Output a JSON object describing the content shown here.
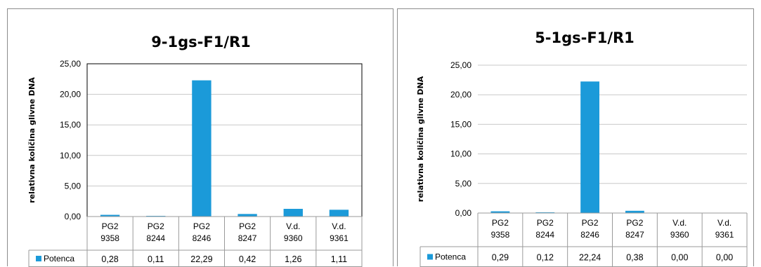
{
  "chart_data": [
    {
      "type": "bar",
      "title": "9-1gs-F1/R1",
      "ylabel": "relativna količina glivne DNA",
      "xlabel": "",
      "ylim": [
        0,
        25
      ],
      "yticks": [
        "0,00",
        "5,00",
        "10,00",
        "15,00",
        "20,00",
        "25,00"
      ],
      "categories": [
        [
          "PG2",
          "9358"
        ],
        [
          "PG2",
          "8244"
        ],
        [
          "PG2",
          "8246"
        ],
        [
          "PG2",
          "8247"
        ],
        [
          "V.d.",
          "9360"
        ],
        [
          "V.d.",
          "9361"
        ]
      ],
      "series": [
        {
          "name": "Potenca",
          "color": "#1b9ad9",
          "values": [
            0.28,
            0.11,
            22.29,
            0.42,
            1.26,
            1.11
          ],
          "labels": [
            "0,28",
            "0,11",
            "22,29",
            "0,42",
            "1,26",
            "1,11"
          ]
        }
      ],
      "grid": true,
      "data_table": true
    },
    {
      "type": "bar",
      "title": "5-1gs-F1/R1",
      "ylabel": "relativna količina glivne DNA",
      "xlabel": "",
      "ylim": [
        0,
        25
      ],
      "yticks": [
        "0,00",
        "5,00",
        "10,00",
        "15,00",
        "20,00",
        "25,00"
      ],
      "categories": [
        [
          "PG2",
          "9358"
        ],
        [
          "PG2",
          "8244"
        ],
        [
          "PG2",
          "8246"
        ],
        [
          "PG2",
          "8247"
        ],
        [
          "V.d.",
          "9360"
        ],
        [
          "V.d.",
          "9361"
        ]
      ],
      "series": [
        {
          "name": "Potenca",
          "color": "#1b9ad9",
          "values": [
            0.29,
            0.12,
            22.24,
            0.38,
            0.0,
            0.0
          ],
          "labels": [
            "0,29",
            "0,12",
            "22,24",
            "0,38",
            "0,00",
            "0,00"
          ]
        }
      ],
      "grid": true,
      "data_table": true
    }
  ]
}
